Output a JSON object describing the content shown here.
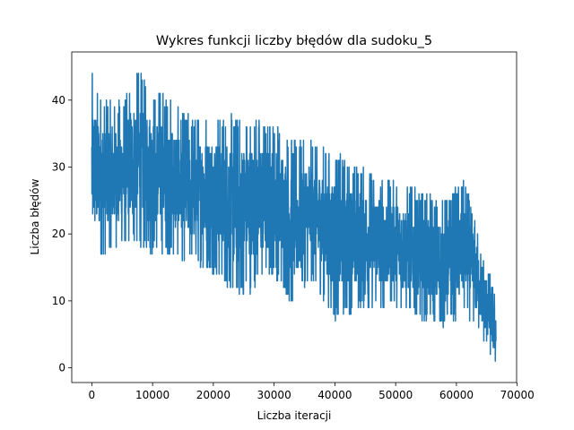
{
  "chart_data": {
    "type": "line",
    "title": "Wykres funkcji liczby błędów dla sudoku_5",
    "xlabel": "Liczba iteracji",
    "ylabel": "Liczba błędów",
    "xlim": [
      -3300,
      69900
    ],
    "ylim": [
      -2.2,
      47.2
    ],
    "xticks": [
      0,
      10000,
      20000,
      30000,
      40000,
      50000,
      60000,
      70000
    ],
    "yticks": [
      0,
      10,
      20,
      30,
      40
    ],
    "grid": false,
    "legend": "none",
    "series": [
      {
        "color": "#1f77b4",
        "x_range": [
          0,
          66500
        ],
        "trend_points": [
          {
            "x": 0,
            "low": 16,
            "high": 44
          },
          {
            "x": 2000,
            "low": 17,
            "high": 40
          },
          {
            "x": 5000,
            "low": 18,
            "high": 40
          },
          {
            "x": 7600,
            "low": 18,
            "high": 45
          },
          {
            "x": 10000,
            "low": 17,
            "high": 41
          },
          {
            "x": 11300,
            "low": 17,
            "high": 42
          },
          {
            "x": 15000,
            "low": 16,
            "high": 38
          },
          {
            "x": 20000,
            "low": 14,
            "high": 38
          },
          {
            "x": 24200,
            "low": 10,
            "high": 38
          },
          {
            "x": 30000,
            "low": 14,
            "high": 37
          },
          {
            "x": 33000,
            "low": 9,
            "high": 34
          },
          {
            "x": 36000,
            "low": 13,
            "high": 34
          },
          {
            "x": 40000,
            "low": 7,
            "high": 32
          },
          {
            "x": 45000,
            "low": 9,
            "high": 30
          },
          {
            "x": 50000,
            "low": 9,
            "high": 28
          },
          {
            "x": 55000,
            "low": 7,
            "high": 26
          },
          {
            "x": 57500,
            "low": 6,
            "high": 25
          },
          {
            "x": 61500,
            "low": 8,
            "high": 28
          },
          {
            "x": 64000,
            "low": 5,
            "high": 18
          },
          {
            "x": 65500,
            "low": 2,
            "high": 14
          },
          {
            "x": 66500,
            "low": 0,
            "high": 11
          }
        ]
      }
    ]
  }
}
